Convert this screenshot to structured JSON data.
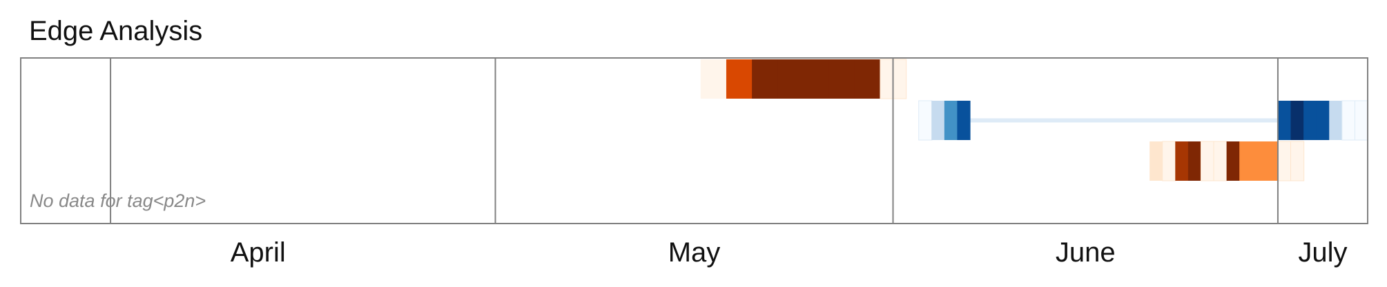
{
  "chart_data": {
    "type": "heatmap",
    "title": "Edge Analysis",
    "x_axis_labels": [
      "April",
      "May",
      "June",
      "July"
    ],
    "x_range": [
      "2025-03-25",
      "2025-07-08"
    ],
    "month_boundaries": [
      "2025-04-01",
      "2025-05-01",
      "2025-06-01",
      "2025-07-01"
    ],
    "note": "No data for tag<p2n>",
    "grid": false,
    "rows": [
      {
        "color_scale": "oranges",
        "cells": [
          {
            "date": "2025-05-17",
            "level": 0.03
          },
          {
            "date": "2025-05-19",
            "level": 0.7
          },
          {
            "date": "2025-05-21",
            "level": 1.0
          },
          {
            "date": "2025-05-23",
            "level": 1.0
          },
          {
            "date": "2025-05-25",
            "level": 1.0
          },
          {
            "date": "2025-05-27",
            "level": 1.0
          },
          {
            "date": "2025-05-29",
            "level": 1.0
          },
          {
            "date": "2025-05-31",
            "level": 0.0
          }
        ]
      },
      {
        "color_scale": "blues",
        "cells": [
          {
            "date": "2025-06-03",
            "level": 0.0
          },
          {
            "date": "2025-06-04",
            "level": 0.25
          },
          {
            "date": "2025-06-05",
            "level": 0.6
          },
          {
            "date": "2025-06-06",
            "level": 0.9
          },
          {
            "date": "2025-07-01",
            "level": 0.9
          },
          {
            "date": "2025-07-02",
            "level": 1.0
          },
          {
            "date": "2025-07-03",
            "level": 0.9
          },
          {
            "date": "2025-07-04",
            "level": 0.9
          },
          {
            "date": "2025-07-05",
            "level": 0.25
          },
          {
            "date": "2025-07-06",
            "level": 0.0
          },
          {
            "date": "2025-07-07",
            "level": 0.0
          }
        ],
        "connector": {
          "from": "2025-06-06",
          "to": "2025-07-01",
          "level": 0.05
        }
      },
      {
        "color_scale": "oranges",
        "cells": [
          {
            "date": "2025-06-21",
            "level": 0.12
          },
          {
            "date": "2025-06-22",
            "level": 0.0
          },
          {
            "date": "2025-06-23",
            "level": 0.9
          },
          {
            "date": "2025-06-24",
            "level": 1.0
          },
          {
            "date": "2025-06-25",
            "level": 0.0
          },
          {
            "date": "2025-06-26",
            "level": 0.0
          },
          {
            "date": "2025-06-27",
            "level": 1.0
          },
          {
            "date": "2025-06-28",
            "level": 0.45
          },
          {
            "date": "2025-06-29",
            "level": 0.45
          },
          {
            "date": "2025-06-30",
            "level": 0.45
          },
          {
            "date": "2025-07-01",
            "level": 0.0
          },
          {
            "date": "2025-07-02",
            "level": 0.0
          }
        ]
      }
    ]
  },
  "colors": {
    "frame": "#808080",
    "oranges": [
      "#fff5eb",
      "#fee6ce",
      "#fdd0a2",
      "#fdae6b",
      "#fd8d3c",
      "#f16913",
      "#d94801",
      "#a63603",
      "#7f2704"
    ],
    "blues": [
      "#f7fbff",
      "#deebf7",
      "#c6dbef",
      "#9ecae1",
      "#6baed6",
      "#4292c6",
      "#2171b5",
      "#08519c",
      "#08306b"
    ]
  }
}
